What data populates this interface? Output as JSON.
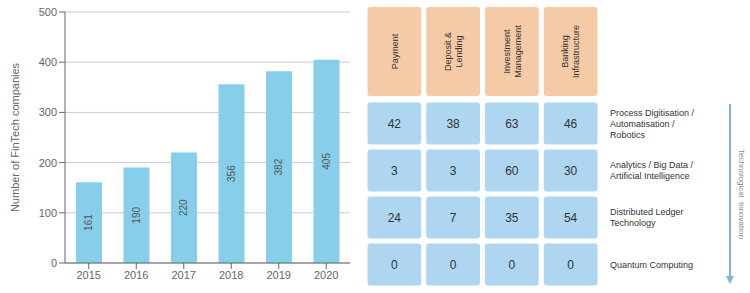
{
  "chart_data": [
    {
      "type": "bar",
      "categories": [
        "2015",
        "2016",
        "2017",
        "2018",
        "2019",
        "2020"
      ],
      "values": [
        161,
        190,
        220,
        356,
        382,
        405
      ],
      "color": "#87CEEB",
      "ylabel": "Number of FinTech companies",
      "ylim": [
        0,
        500
      ],
      "yticks": [
        0,
        100,
        200,
        300,
        400,
        500
      ],
      "grid": true,
      "data_labels": true
    },
    {
      "type": "heatmap",
      "categories": [
        "Payment",
        "Deposit &\nLending",
        "Investment\nManagement",
        "Banking\nInfrastructure"
      ],
      "series": [
        {
          "name": "Process Digitisation /\nAutomatisation /\nRobotics",
          "values": [
            42,
            38,
            63,
            46
          ],
          "color": "#AED6F1"
        },
        {
          "name": "Analytics / Big Data /\nArtificial Intelligence",
          "values": [
            3,
            3,
            60,
            30
          ],
          "color": "#AED6F1"
        },
        {
          "name": "Distributed Ledger\nTechnology",
          "values": [
            24,
            7,
            35,
            54
          ],
          "color": "#AED6F1"
        },
        {
          "name": "Quantum Computing",
          "values": [
            0,
            0,
            0,
            0
          ],
          "color": "#AED6F1"
        }
      ],
      "color": "#F5CBA7",
      "annotations": [
        {
          "text": "Technological  Innovation",
          "color": "#7FB3D3"
        }
      ],
      "data_labels": true
    }
  ]
}
